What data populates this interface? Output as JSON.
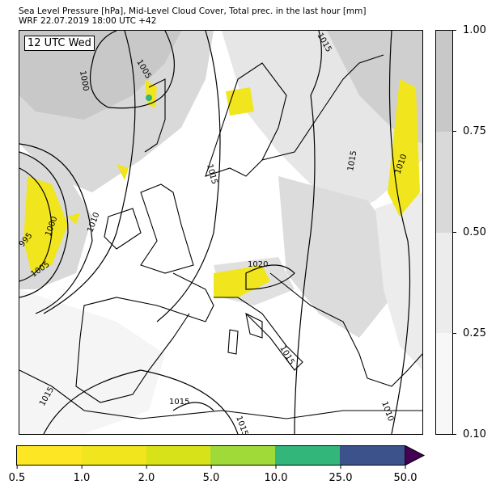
{
  "title": {
    "line1": "Sea Level Pressure [hPa], Mid-Level Cloud Cover, Total prec. in the last hour [mm]",
    "line2": "WRF 22.07.2019 18:00 UTC +42"
  },
  "map": {
    "time_label": "12 UTC Wed",
    "isobar_labels": [
      "1005",
      "1000",
      "1015",
      "1015",
      "1015",
      "1010",
      "1010",
      "1000",
      "995",
      "1005",
      "1020",
      "1015",
      "1015",
      "1015",
      "1015",
      "1010"
    ]
  },
  "cloud_colorbar": {
    "ticks": [
      "1.00",
      "0.75",
      "0.50",
      "0.25",
      "0.10"
    ],
    "colors": [
      "#c8c8c8",
      "#d9d9d9",
      "#ececec",
      "#f7f7f7"
    ]
  },
  "precip_colorbar": {
    "ticks": [
      "0.5",
      "1.0",
      "2.0",
      "5.0",
      "10.0",
      "25.0",
      "50.0"
    ],
    "colors": [
      "#fde725",
      "#f1e51d",
      "#d8e219",
      "#a0da39",
      "#32b67a",
      "#3b528b"
    ],
    "extend_color": "#440154"
  }
}
